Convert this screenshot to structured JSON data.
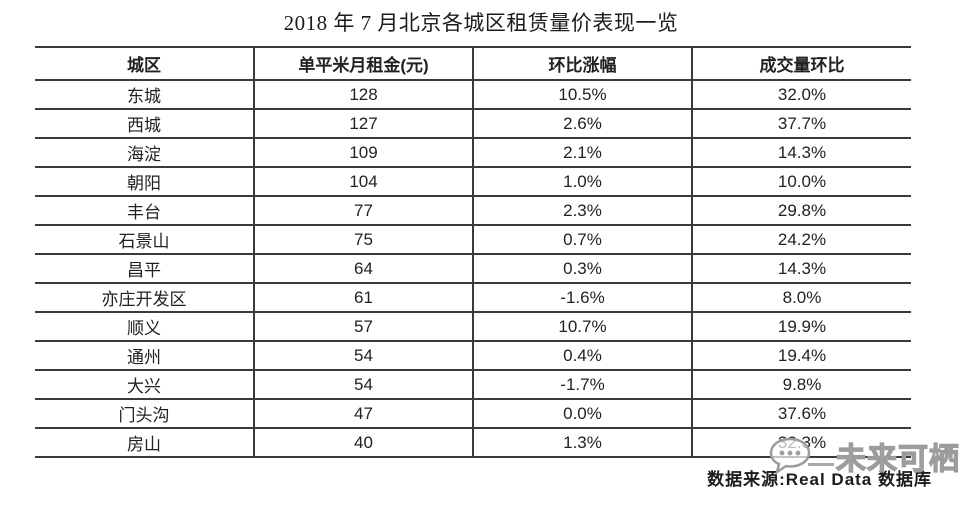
{
  "title": "2018 年 7 月北京各城区租赁量价表现一览",
  "table": {
    "headers": [
      "城区",
      "单平米月租金(元)",
      "环比涨幅",
      "成交量环比"
    ],
    "rows": [
      [
        "东城",
        "128",
        "10.5%",
        "32.0%"
      ],
      [
        "西城",
        "127",
        "2.6%",
        "37.7%"
      ],
      [
        "海淀",
        "109",
        "2.1%",
        "14.3%"
      ],
      [
        "朝阳",
        "104",
        "1.0%",
        "10.0%"
      ],
      [
        "丰台",
        "77",
        "2.3%",
        "29.8%"
      ],
      [
        "石景山",
        "75",
        "0.7%",
        "24.2%"
      ],
      [
        "昌平",
        "64",
        "0.3%",
        "14.3%"
      ],
      [
        "亦庄开发区",
        "61",
        "-1.6%",
        "8.0%"
      ],
      [
        "顺义",
        "57",
        "10.7%",
        "19.9%"
      ],
      [
        "通州",
        "54",
        "0.4%",
        "19.4%"
      ],
      [
        "大兴",
        "54",
        "-1.7%",
        "9.8%"
      ],
      [
        "门头沟",
        "47",
        "0.0%",
        "37.6%"
      ],
      [
        "房山",
        "40",
        "1.3%",
        "32.3%"
      ]
    ]
  },
  "footer": {
    "source_label": "数据来源:Real Data 数据库"
  },
  "watermark": {
    "text": "未来可栖",
    "icon": "chat-bubble-icon"
  },
  "colors": {
    "text": "#222222",
    "grid_line": "#3a3a3a",
    "watermark_gray": "#9c9c9c",
    "background": "#ffffff"
  },
  "chart_data": {
    "type": "table",
    "title": "2018 年 7 月北京各城区租赁量价表现一览",
    "columns": [
      "城区",
      "单平米月租金(元)",
      "环比涨幅",
      "成交量环比"
    ],
    "districts": [
      "东城",
      "西城",
      "海淀",
      "朝阳",
      "丰台",
      "石景山",
      "昌平",
      "亦庄开发区",
      "顺义",
      "通州",
      "大兴",
      "门头沟",
      "房山"
    ],
    "rent_per_sqm_yuan": [
      128,
      127,
      109,
      104,
      77,
      75,
      64,
      61,
      57,
      54,
      54,
      47,
      40
    ],
    "rent_mom_change_pct": [
      10.5,
      2.6,
      2.1,
      1.0,
      2.3,
      0.7,
      0.3,
      -1.6,
      10.7,
      0.4,
      -1.7,
      0.0,
      1.3
    ],
    "volume_mom_change_pct": [
      32.0,
      37.7,
      14.3,
      10.0,
      29.8,
      24.2,
      14.3,
      8.0,
      19.9,
      19.4,
      9.8,
      37.6,
      32.3
    ],
    "source": "数据来源:Real Data 数据库",
    "legend_position": "none",
    "grid": true
  }
}
